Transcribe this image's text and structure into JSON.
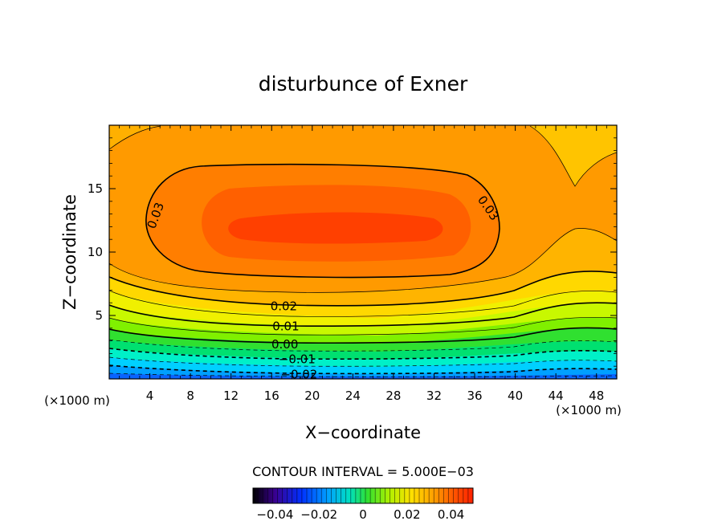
{
  "chart_data": {
    "type": "contour",
    "title": "disturbunce of Exner",
    "xlabel": "X−coordinate",
    "ylabel": "Z−coordinate",
    "x_unit_label": "(×1000 m)",
    "y_unit_label": "(×1000 m)",
    "xlim": [
      0,
      50
    ],
    "ylim": [
      0,
      20
    ],
    "x_ticks": [
      4,
      8,
      12,
      16,
      20,
      24,
      28,
      32,
      36,
      40,
      44,
      48
    ],
    "y_ticks": [
      5,
      10,
      15
    ],
    "contour_interval_text": "CONTOUR INTERVAL = 5.000E−03",
    "contour_labels": [
      {
        "text": "0.03",
        "x": 4.5,
        "z": 12.9,
        "rotate": -70
      },
      {
        "text": "0.03",
        "x": 37.4,
        "z": 13.5,
        "rotate": 55
      },
      {
        "text": "0.02",
        "x": 17.2,
        "z": 5.8,
        "rotate": 0
      },
      {
        "text": "0.01",
        "x": 17.4,
        "z": 4.2,
        "rotate": 0
      },
      {
        "text": "0.00",
        "x": 17.3,
        "z": 2.8,
        "rotate": 0
      },
      {
        "text": "−0.01",
        "x": 18.5,
        "z": 1.6,
        "rotate": 0
      },
      {
        "text": "−0.02",
        "x": 18.7,
        "z": 0.4,
        "rotate": 0
      }
    ],
    "colorbar": {
      "range": [
        -0.05,
        0.05
      ],
      "ticks": [
        {
          "value": -0.04,
          "label": "−0.04"
        },
        {
          "value": -0.02,
          "label": "−0.02"
        },
        {
          "value": 0,
          "label": "0"
        },
        {
          "value": 0.02,
          "label": "0.02"
        },
        {
          "value": 0.04,
          "label": "0.04"
        }
      ]
    },
    "colors": [
      "#0a64ff",
      "#00a0ff",
      "#00d0ff",
      "#00f0c8",
      "#00e070",
      "#30e030",
      "#80f000",
      "#c8f800",
      "#f0f000",
      "#ffd800",
      "#ffb400",
      "#ff9a00",
      "#ff7e00",
      "#ff6000",
      "#ff4000"
    ]
  }
}
